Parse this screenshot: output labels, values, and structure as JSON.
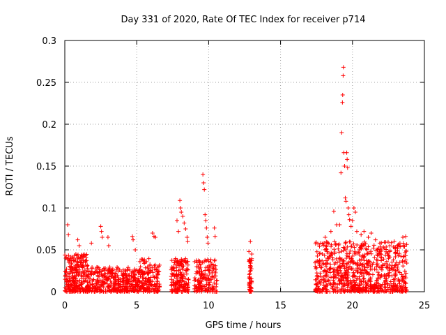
{
  "chart_data": {
    "type": "scatter",
    "title": "Day 331 of 2020, Rate Of TEC Index for receiver p714",
    "xlabel": "GPS time / hours",
    "ylabel": "ROTI / TECUs",
    "xlim": [
      0,
      25
    ],
    "ylim": [
      0,
      0.3
    ],
    "xticks": [
      0,
      5,
      10,
      15,
      20,
      25
    ],
    "xtick_labels": [
      "0",
      "5",
      "10",
      "15",
      "20",
      "25"
    ],
    "yticks": [
      0,
      0.05,
      0.1,
      0.15,
      0.2,
      0.25,
      0.3
    ],
    "ytick_labels": [
      "0",
      "0.05",
      "0.1",
      "0.15",
      "0.2",
      "0.25",
      "0.3"
    ],
    "grid": true,
    "marker": "+",
    "color": "#ff0000",
    "clusters": [
      {
        "x_range": [
          0.0,
          1.6
        ],
        "y_range": [
          0.0,
          0.045
        ],
        "count": 260
      },
      {
        "x_range": [
          1.6,
          3.0
        ],
        "y_range": [
          0.0,
          0.03
        ],
        "count": 140
      },
      {
        "x_range": [
          3.0,
          5.2
        ],
        "y_range": [
          0.0,
          0.03
        ],
        "count": 260
      },
      {
        "x_range": [
          5.2,
          6.6
        ],
        "y_range": [
          0.0,
          0.04
        ],
        "count": 160
      },
      {
        "x_range": [
          7.4,
          8.6
        ],
        "y_range": [
          0.0,
          0.04
        ],
        "count": 180
      },
      {
        "x_range": [
          9.0,
          10.6
        ],
        "y_range": [
          0.0,
          0.04
        ],
        "count": 160
      },
      {
        "x_range": [
          12.8,
          13.0
        ],
        "y_range": [
          0.0,
          0.04
        ],
        "count": 50
      },
      {
        "x_range": [
          17.4,
          23.8
        ],
        "y_range": [
          0.0,
          0.06
        ],
        "count": 800
      }
    ],
    "points": [
      [
        0.2,
        0.08
      ],
      [
        0.25,
        0.068
      ],
      [
        0.9,
        0.062
      ],
      [
        1.0,
        0.055
      ],
      [
        1.85,
        0.058
      ],
      [
        2.5,
        0.078
      ],
      [
        2.55,
        0.072
      ],
      [
        2.6,
        0.065
      ],
      [
        3.0,
        0.065
      ],
      [
        3.05,
        0.055
      ],
      [
        4.7,
        0.066
      ],
      [
        4.75,
        0.062
      ],
      [
        4.9,
        0.05
      ],
      [
        6.1,
        0.07
      ],
      [
        6.2,
        0.066
      ],
      [
        6.3,
        0.065
      ],
      [
        7.8,
        0.085
      ],
      [
        7.9,
        0.072
      ],
      [
        8.0,
        0.109
      ],
      [
        8.05,
        0.1
      ],
      [
        8.1,
        0.095
      ],
      [
        8.2,
        0.09
      ],
      [
        8.3,
        0.082
      ],
      [
        8.4,
        0.075
      ],
      [
        8.5,
        0.065
      ],
      [
        8.55,
        0.06
      ],
      [
        9.6,
        0.14
      ],
      [
        9.65,
        0.13
      ],
      [
        9.7,
        0.122
      ],
      [
        9.75,
        0.092
      ],
      [
        9.8,
        0.085
      ],
      [
        9.85,
        0.076
      ],
      [
        9.9,
        0.065
      ],
      [
        9.95,
        0.058
      ],
      [
        10.4,
        0.076
      ],
      [
        10.45,
        0.066
      ],
      [
        12.9,
        0.06
      ],
      [
        12.8,
        0.048
      ],
      [
        13.0,
        0.045
      ],
      [
        17.8,
        0.058
      ],
      [
        18.1,
        0.065
      ],
      [
        18.5,
        0.072
      ],
      [
        18.7,
        0.096
      ],
      [
        18.9,
        0.08
      ],
      [
        19.1,
        0.08
      ],
      [
        19.2,
        0.142
      ],
      [
        19.25,
        0.19
      ],
      [
        19.3,
        0.226
      ],
      [
        19.32,
        0.235
      ],
      [
        19.35,
        0.258
      ],
      [
        19.37,
        0.268
      ],
      [
        19.4,
        0.166
      ],
      [
        19.45,
        0.15
      ],
      [
        19.5,
        0.112
      ],
      [
        19.55,
        0.108
      ],
      [
        19.6,
        0.166
      ],
      [
        19.63,
        0.158
      ],
      [
        19.66,
        0.148
      ],
      [
        19.7,
        0.1
      ],
      [
        19.75,
        0.092
      ],
      [
        19.8,
        0.086
      ],
      [
        19.9,
        0.078
      ],
      [
        20.0,
        0.085
      ],
      [
        20.1,
        0.1
      ],
      [
        20.2,
        0.095
      ],
      [
        20.3,
        0.072
      ],
      [
        20.6,
        0.068
      ],
      [
        20.8,
        0.072
      ],
      [
        21.1,
        0.065
      ],
      [
        21.3,
        0.07
      ],
      [
        21.6,
        0.062
      ],
      [
        21.9,
        0.058
      ],
      [
        22.2,
        0.052
      ],
      [
        22.6,
        0.055
      ],
      [
        22.9,
        0.06
      ],
      [
        23.3,
        0.058
      ],
      [
        23.5,
        0.065
      ],
      [
        23.7,
        0.066
      ]
    ]
  }
}
